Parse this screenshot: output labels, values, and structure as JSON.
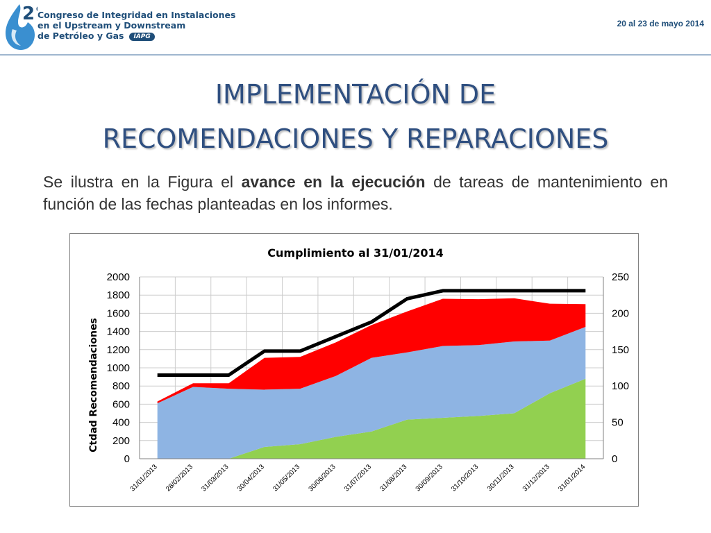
{
  "header": {
    "logo_number": "2°",
    "logo_lines": [
      "Congreso de Integridad en Instalaciones",
      "en el Upstream y Downstream",
      "de Petróleo y Gas"
    ],
    "logo_badge": "IAPG",
    "date": "20 al 23 de mayo 2014"
  },
  "slide": {
    "title_line1": "IMPLEMENTACIÓN DE",
    "title_line2": "RECOMENDACIONES Y REPARACIONES",
    "text_before": "Se ilustra en la Figura el ",
    "text_bold": "avance en la ejecución",
    "text_after": " de tareas de mantenimiento en función de las fechas planteadas en los informes."
  },
  "chart_data": {
    "type": "area",
    "title": "Cumplimiento al 31/01/2014",
    "ylabel": "Ctdad Recomendaciones",
    "y2label": "",
    "ylim": [
      0,
      2000
    ],
    "y2lim": [
      0,
      250
    ],
    "yticks": [
      0,
      200,
      400,
      600,
      800,
      1000,
      1200,
      1400,
      1600,
      1800,
      2000
    ],
    "y2ticks": [
      0,
      50,
      100,
      150,
      200,
      250
    ],
    "grid": true,
    "legend": "none",
    "categories": [
      "31/01/2013",
      "28/02/2013",
      "31/03/2013",
      "30/04/2013",
      "31/05/2013",
      "30/06/2013",
      "31/07/2013",
      "31/08/2013",
      "30/09/2013",
      "31/10/2013",
      "30/11/2013",
      "31/12/2013",
      "31/01/2014"
    ],
    "series": [
      {
        "kind": "stacked-area",
        "color": "#92d050",
        "values": [
          0,
          0,
          0,
          130,
          160,
          240,
          300,
          430,
          450,
          470,
          500,
          720,
          880
        ]
      },
      {
        "kind": "stacked-area",
        "color": "#8eb4e3",
        "values": [
          610,
          790,
          770,
          630,
          610,
          670,
          810,
          740,
          790,
          780,
          790,
          580,
          570
        ]
      },
      {
        "kind": "stacked-area",
        "color": "#ff0000",
        "values": [
          20,
          40,
          60,
          350,
          350,
          370,
          360,
          450,
          520,
          505,
          475,
          405,
          250
        ]
      },
      {
        "kind": "line",
        "axis": "right",
        "color": "#000000",
        "values": [
          115,
          115,
          115,
          148,
          148,
          168,
          188,
          220,
          231,
          231,
          231,
          231,
          231
        ]
      }
    ]
  }
}
